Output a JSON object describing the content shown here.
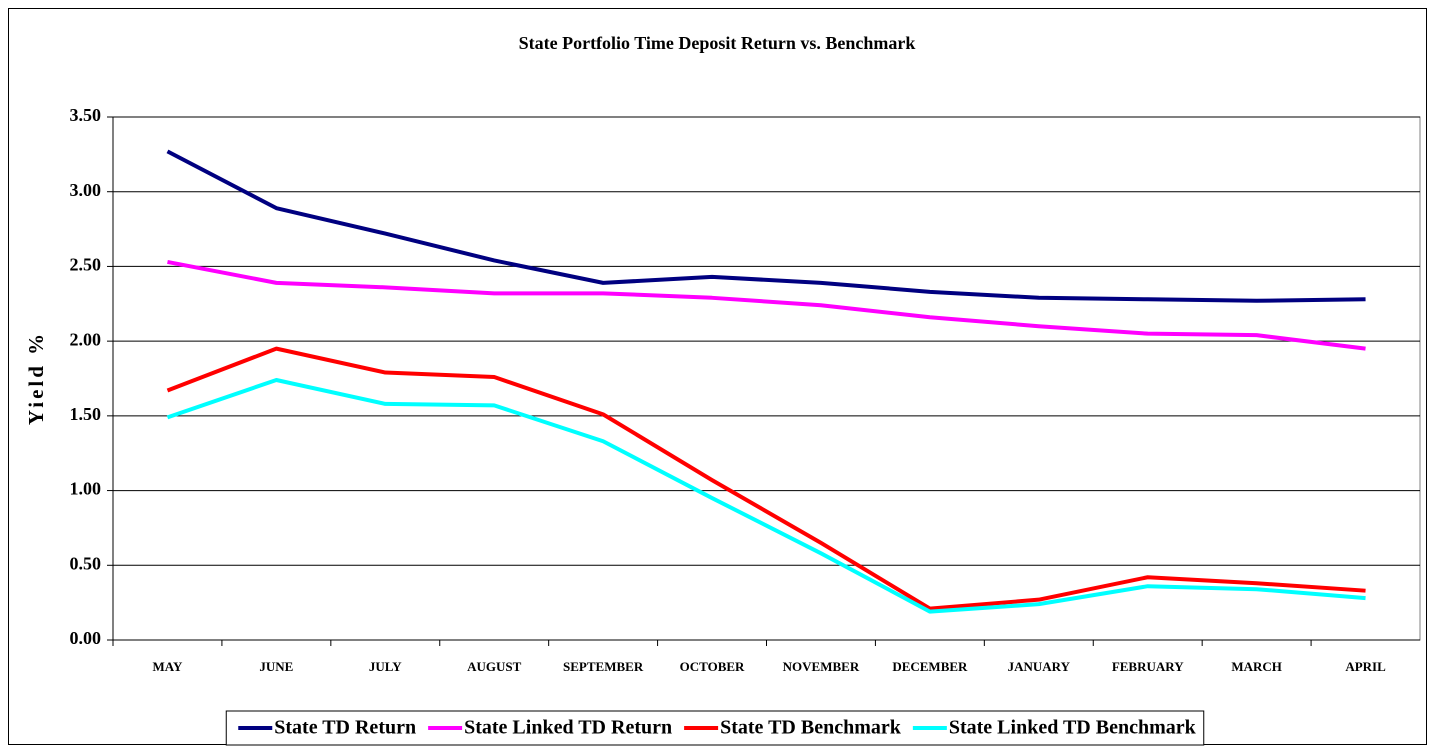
{
  "chart_data": {
    "type": "line",
    "title": "State Portfolio Time Deposit Return vs. Benchmark",
    "y_label": "Yield %",
    "categories": [
      "MAY",
      "JUNE",
      "JULY",
      "AUGUST",
      "SEPTEMBER",
      "OCTOBER",
      "NOVEMBER",
      "DECEMBER",
      "JANUARY",
      "FEBRUARY",
      "MARCH",
      "APRIL"
    ],
    "series": [
      {
        "name": "State TD Return",
        "color": "#000080",
        "values": [
          3.27,
          2.89,
          2.72,
          2.54,
          2.39,
          2.43,
          2.39,
          2.33,
          2.29,
          2.28,
          2.27,
          2.28
        ]
      },
      {
        "name": "State Linked TD Return",
        "color": "#ff00ff",
        "values": [
          2.53,
          2.39,
          2.36,
          2.32,
          2.32,
          2.29,
          2.24,
          2.16,
          2.1,
          2.05,
          2.04,
          1.95
        ]
      },
      {
        "name": "State TD Benchmark",
        "color": "#ff0000",
        "values": [
          1.67,
          1.95,
          1.79,
          1.76,
          1.51,
          1.07,
          0.65,
          0.21,
          0.27,
          0.42,
          0.38,
          0.33
        ]
      },
      {
        "name": "State Linked TD Benchmark",
        "color": "#00ffff",
        "values": [
          1.49,
          1.74,
          1.58,
          1.57,
          1.33,
          0.95,
          0.58,
          0.19,
          0.24,
          0.36,
          0.34,
          0.28
        ]
      }
    ],
    "ylim": [
      0,
      3.5
    ],
    "yticks": [
      {
        "value": 0,
        "label": "0.00"
      },
      {
        "value": 0.5,
        "label": "0.50"
      },
      {
        "value": 1,
        "label": "1.00"
      },
      {
        "value": 1.5,
        "label": "1.50"
      },
      {
        "value": 2,
        "label": "2.00"
      },
      {
        "value": 2.5,
        "label": "2.50"
      },
      {
        "value": 3,
        "label": "3.00"
      },
      {
        "value": 3.5,
        "label": "3.50"
      }
    ],
    "grid": true,
    "legend": "bottom"
  }
}
